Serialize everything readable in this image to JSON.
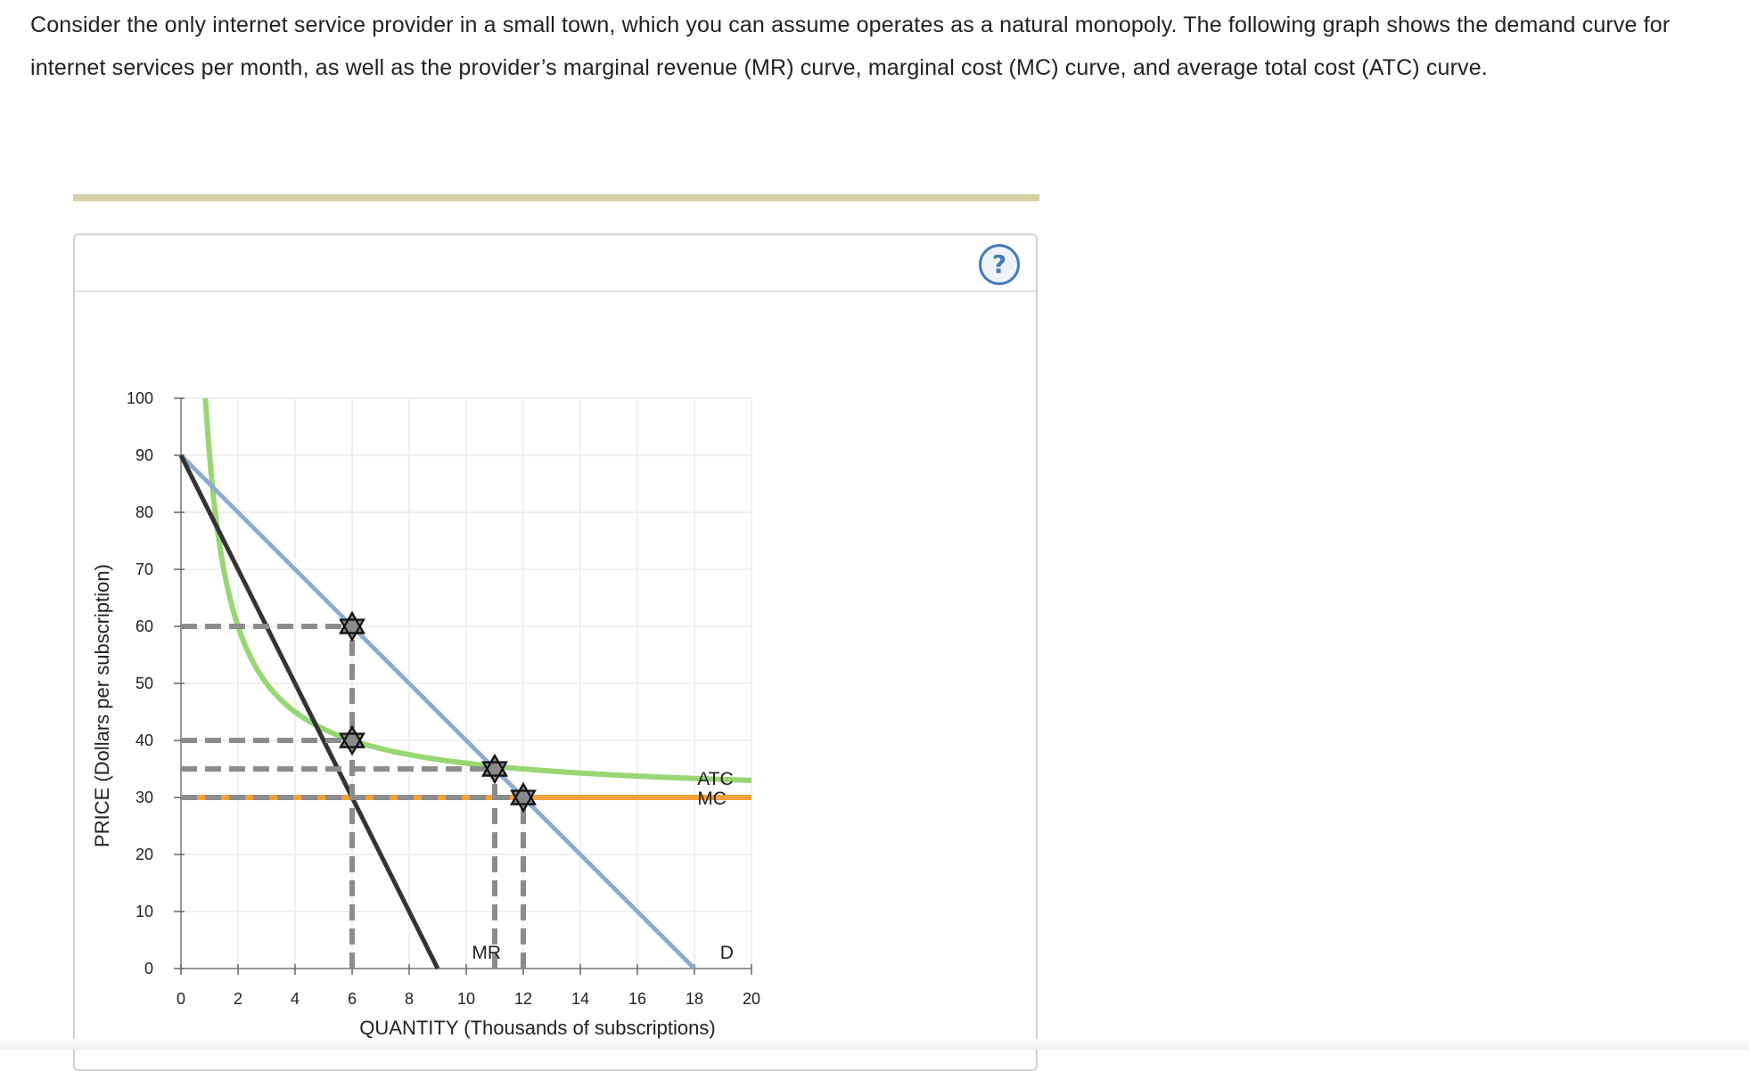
{
  "question": {
    "text": "Consider the only internet service provider in a small town, which you can assume operates as a natural monopoly. The following graph shows the demand curve for internet services per month, as well as the provider’s marginal revenue (MR) curve, marginal cost (MC) curve, and average total cost (ATC) curve."
  },
  "help": {
    "icon": "question-mark-icon",
    "label": "?",
    "color": "#4a79b8"
  },
  "colors": {
    "demand": "#8eacd0",
    "mr": "#333333",
    "atc": "#97d672",
    "mc": "#f1a23c",
    "guide": "#8c8c8c",
    "grid": "#ececec",
    "divider": "#d9cfa6"
  },
  "chart_data": {
    "type": "line",
    "xlabel": "QUANTITY (Thousands of subscriptions)",
    "ylabel": "PRICE (Dollars per subscription)",
    "xlim": [
      0,
      20
    ],
    "ylim": [
      0,
      100
    ],
    "xticks": [
      0,
      2,
      4,
      6,
      8,
      10,
      12,
      14,
      16,
      18,
      20
    ],
    "yticks": [
      0,
      10,
      20,
      30,
      40,
      50,
      60,
      70,
      80,
      90,
      100
    ],
    "grid": true,
    "series": [
      {
        "name": "D",
        "kind": "linear",
        "x": [
          0,
          18
        ],
        "y": [
          90,
          0
        ]
      },
      {
        "name": "MR",
        "kind": "linear",
        "x": [
          0,
          9
        ],
        "y": [
          90,
          0
        ]
      },
      {
        "name": "ATC",
        "kind": "curve",
        "formula": "y = 30 + 60 / x",
        "x_range": [
          0.857,
          20
        ]
      },
      {
        "name": "MC",
        "kind": "horizontal",
        "x": [
          0,
          20
        ],
        "y": [
          30,
          30
        ]
      }
    ],
    "points": [
      {
        "x": 6,
        "y": 60
      },
      {
        "x": 6,
        "y": 40
      },
      {
        "x": 11,
        "y": 35
      },
      {
        "x": 12,
        "y": 30
      }
    ],
    "guides": [
      {
        "x": [
          0,
          6
        ],
        "y": [
          60,
          60
        ]
      },
      {
        "x": [
          0,
          6
        ],
        "y": [
          40,
          40
        ]
      },
      {
        "x": [
          0,
          11
        ],
        "y": [
          35,
          35
        ]
      },
      {
        "x": [
          0,
          12
        ],
        "y": [
          30,
          30
        ]
      },
      {
        "x": [
          6,
          6
        ],
        "y": [
          0,
          60
        ]
      },
      {
        "x": [
          11,
          11
        ],
        "y": [
          0,
          35
        ]
      },
      {
        "x": [
          12,
          12
        ],
        "y": [
          0,
          30
        ]
      }
    ],
    "annotations": [
      {
        "text": "ATC",
        "x": 18.1,
        "y": 33.4
      },
      {
        "text": "MC",
        "x": 18.1,
        "y": 30
      },
      {
        "text": "MR",
        "x": 10.2,
        "y": 3
      },
      {
        "text": "D",
        "x": 18.9,
        "y": 3
      }
    ]
  }
}
